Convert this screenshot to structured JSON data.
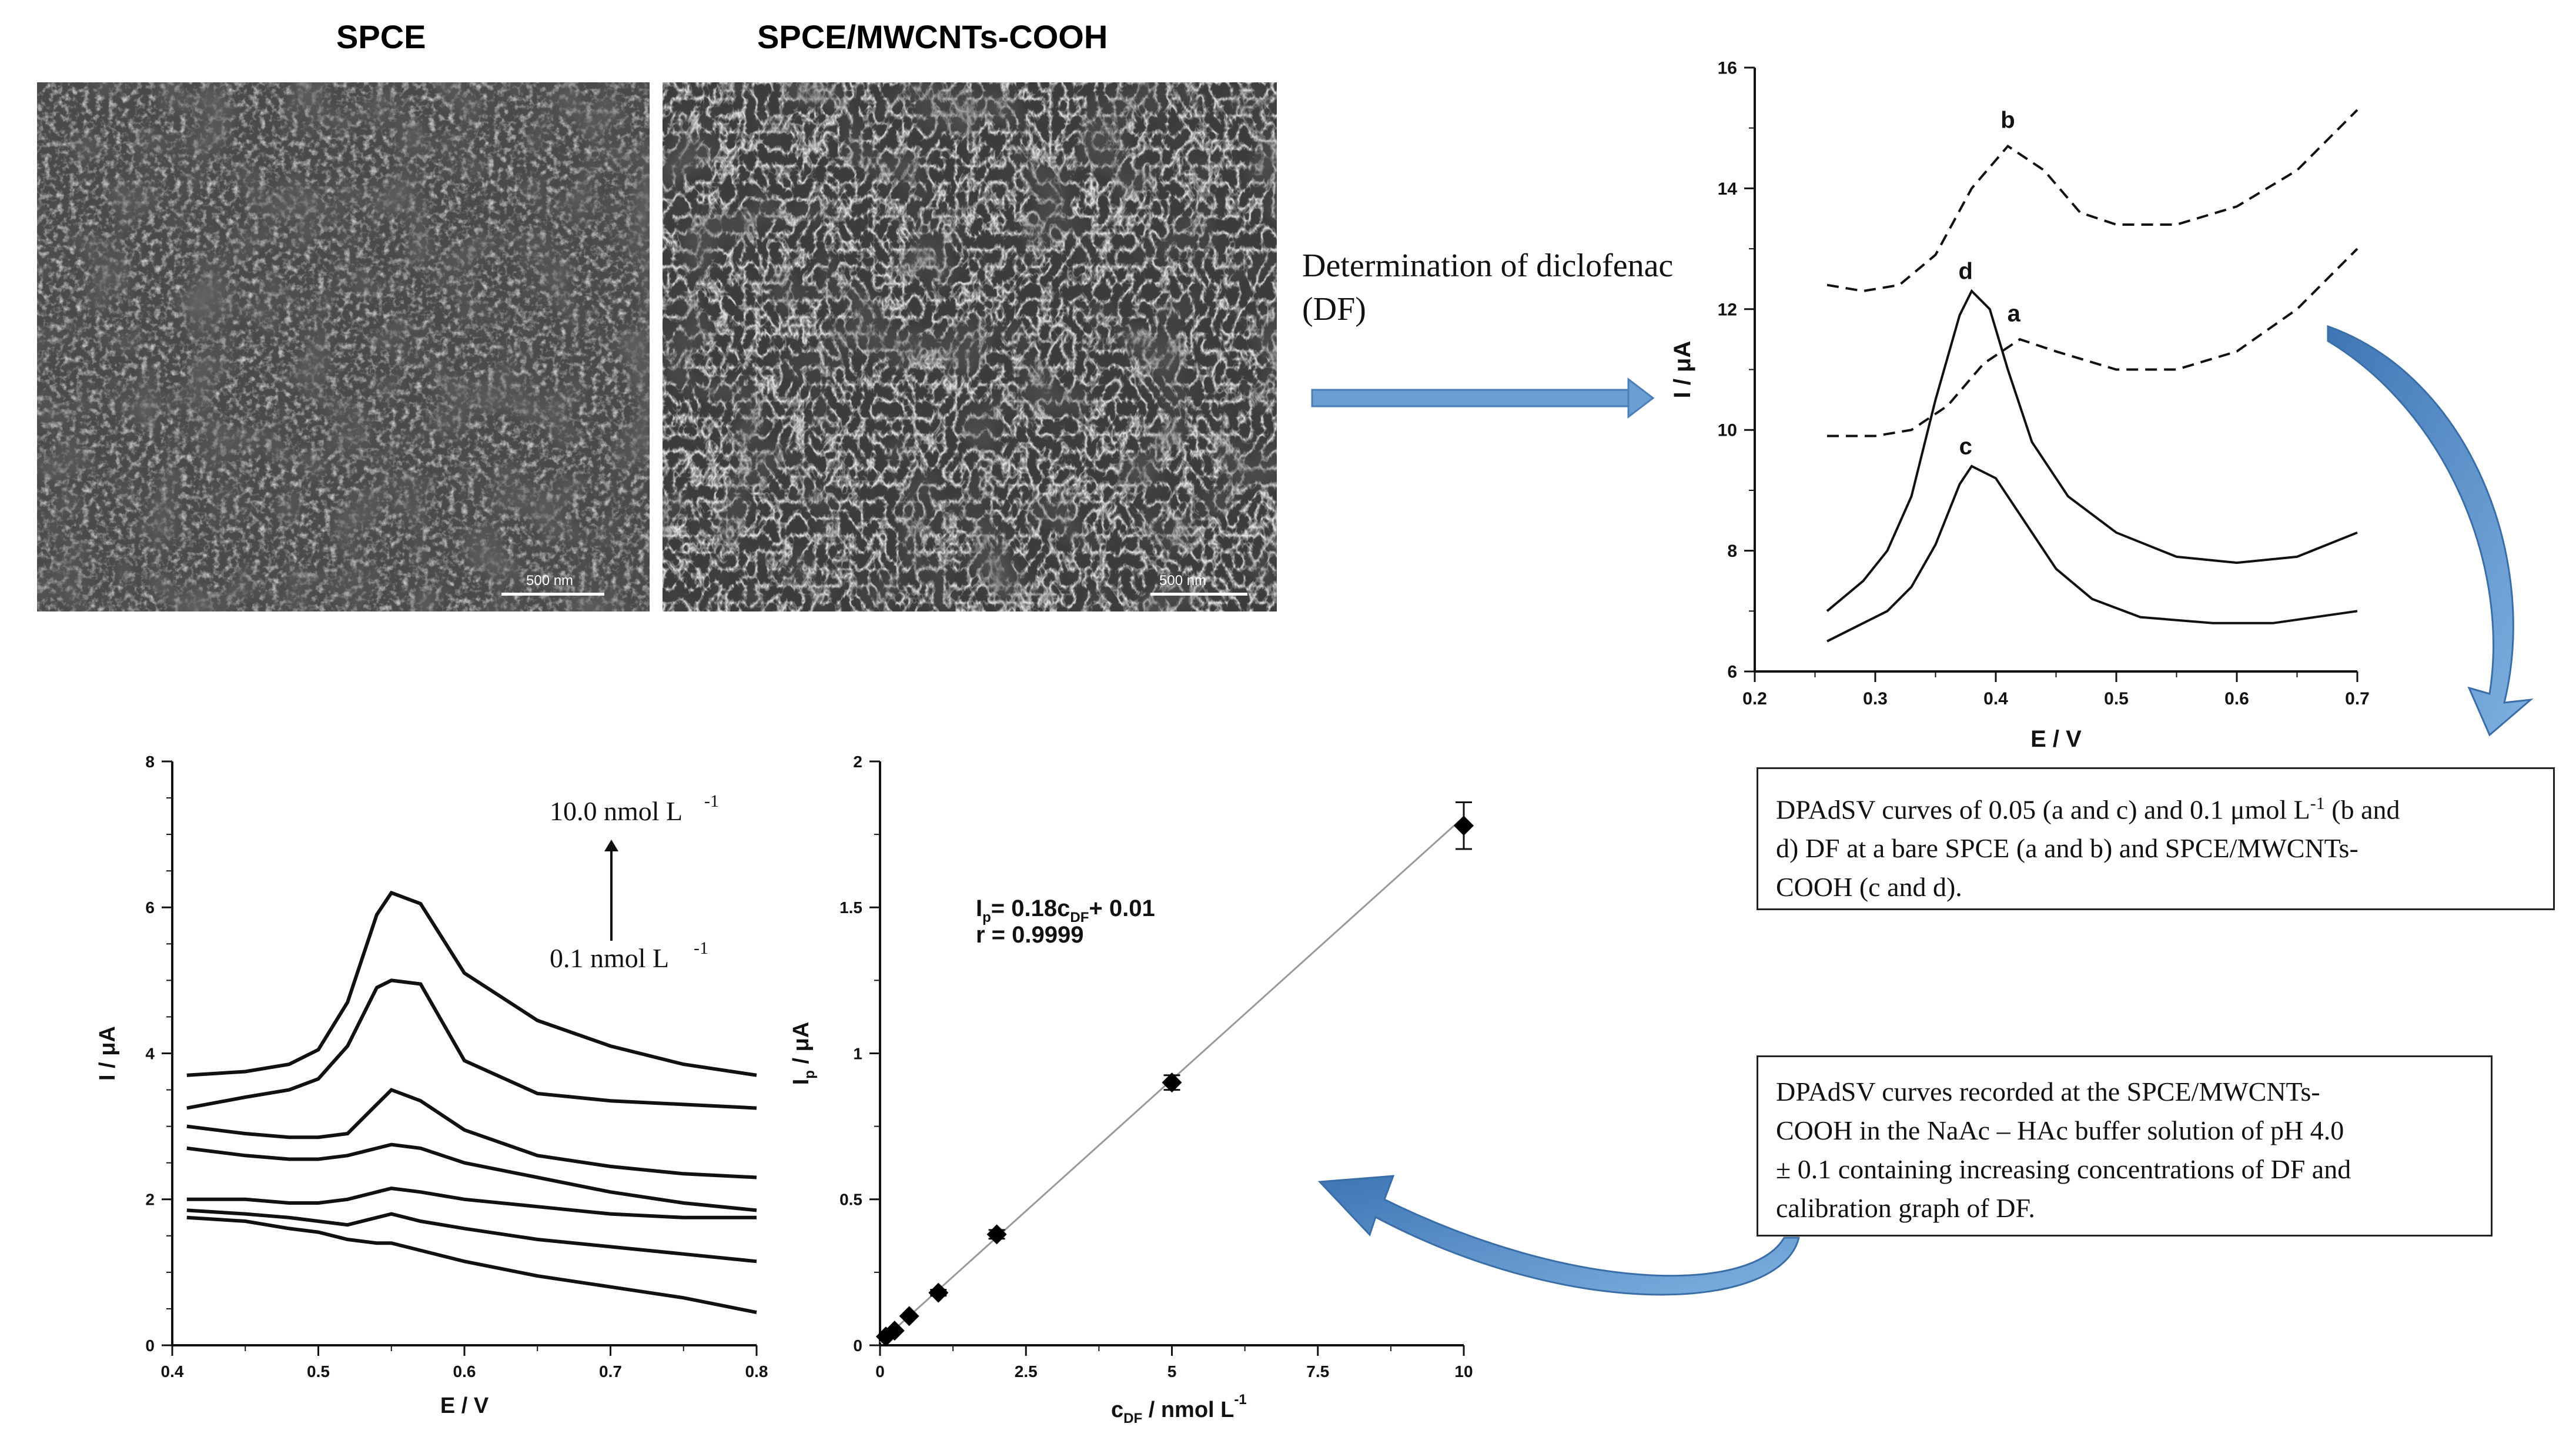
{
  "sem_images": {
    "left": {
      "title": "SPCE",
      "scale_label": "500 nm"
    },
    "right": {
      "title": "SPCE/MWCNTs-COOH",
      "scale_label": "500 nm"
    }
  },
  "flow": {
    "determination_label_line1": "Determination of diclofenac",
    "determination_label_line2": "(DF)"
  },
  "captions": {
    "top_line1": "DPAdSV curves of  0.05 (a and c) and 0.1 μmol  L",
    "top_sup": "-1",
    "top_line1_end": " (b and",
    "top_line2": "d) DF  at a bare SPCE (a and b) and SPCE/MWCNTs-",
    "top_line3": "COOH (c and d).",
    "bottom_line1": "DPAdSV curves recorded at the SPCE/MWCNTs-",
    "bottom_line2": "COOH in the NaAc – HAc buffer solution of pH 4.0",
    "bottom_line3": "± 0.1 containing increasing concentrations of DF and",
    "bottom_line4": "calibration graph of DF."
  },
  "chart_data": [
    {
      "id": "voltammogram-top",
      "type": "line",
      "xlabel": "E / V",
      "ylabel": "I / μA",
      "xlim": [
        0.2,
        0.7
      ],
      "ylim": [
        6,
        16
      ],
      "xticks": [
        "0.2",
        "0.3",
        "0.4",
        "0.5",
        "0.6",
        "0.7"
      ],
      "yticks": [
        "6",
        "8",
        "10",
        "12",
        "14",
        "16"
      ],
      "series": [
        {
          "name": "a",
          "style": "dashed",
          "x": [
            0.26,
            0.3,
            0.33,
            0.36,
            0.39,
            0.42,
            0.45,
            0.5,
            0.55,
            0.6,
            0.65,
            0.7
          ],
          "y": [
            9.9,
            9.9,
            10.0,
            10.4,
            11.1,
            11.5,
            11.3,
            11.0,
            11.0,
            11.3,
            12.0,
            13.0
          ]
        },
        {
          "name": "b",
          "style": "dashed",
          "x": [
            0.26,
            0.29,
            0.32,
            0.35,
            0.38,
            0.41,
            0.44,
            0.47,
            0.5,
            0.55,
            0.6,
            0.65,
            0.7
          ],
          "y": [
            12.4,
            12.3,
            12.4,
            12.9,
            14.0,
            14.7,
            14.3,
            13.6,
            13.4,
            13.4,
            13.7,
            14.3,
            15.3
          ]
        },
        {
          "name": "c",
          "style": "solid",
          "x": [
            0.26,
            0.29,
            0.31,
            0.33,
            0.35,
            0.37,
            0.38,
            0.4,
            0.42,
            0.45,
            0.48,
            0.52,
            0.58,
            0.63,
            0.7
          ],
          "y": [
            6.5,
            6.8,
            7.0,
            7.4,
            8.1,
            9.1,
            9.4,
            9.2,
            8.6,
            7.7,
            7.2,
            6.9,
            6.8,
            6.8,
            7.0
          ]
        },
        {
          "name": "d",
          "style": "solid",
          "x": [
            0.26,
            0.29,
            0.31,
            0.33,
            0.35,
            0.37,
            0.38,
            0.395,
            0.41,
            0.43,
            0.46,
            0.5,
            0.55,
            0.6,
            0.65,
            0.7
          ],
          "y": [
            7.0,
            7.5,
            8.0,
            8.9,
            10.5,
            11.9,
            12.3,
            12.0,
            11.0,
            9.8,
            8.9,
            8.3,
            7.9,
            7.8,
            7.9,
            8.3
          ]
        }
      ],
      "point_labels": [
        {
          "text": "b",
          "x": 0.41,
          "y": 15.0
        },
        {
          "text": "d",
          "x": 0.375,
          "y": 12.5
        },
        {
          "text": "a",
          "x": 0.415,
          "y": 11.8
        },
        {
          "text": "c",
          "x": 0.375,
          "y": 9.6
        }
      ]
    },
    {
      "id": "voltammogram-bottom",
      "type": "line",
      "xlabel": "E / V",
      "ylabel": "I / μA",
      "xlim": [
        0.4,
        0.8
      ],
      "ylim": [
        0,
        8
      ],
      "xticks": [
        "0.4",
        "0.5",
        "0.6",
        "0.7",
        "0.8"
      ],
      "yticks": [
        "0",
        "2",
        "4",
        "6",
        "8"
      ],
      "annotation_top": "10.0 nmol  L",
      "annotation_top_sup": "-1",
      "annotation_bottom": "0.1 nmol  L",
      "annotation_bottom_sup": "-1",
      "series": [
        {
          "x": [
            0.41,
            0.45,
            0.48,
            0.5,
            0.52,
            0.54,
            0.55,
            0.57,
            0.6,
            0.65,
            0.7,
            0.75,
            0.8
          ],
          "y": [
            1.75,
            1.7,
            1.6,
            1.55,
            1.45,
            1.4,
            1.4,
            1.3,
            1.15,
            0.95,
            0.8,
            0.65,
            0.45
          ]
        },
        {
          "x": [
            0.41,
            0.45,
            0.48,
            0.5,
            0.52,
            0.54,
            0.55,
            0.57,
            0.6,
            0.65,
            0.7,
            0.75,
            0.8
          ],
          "y": [
            1.85,
            1.8,
            1.75,
            1.7,
            1.65,
            1.75,
            1.8,
            1.7,
            1.6,
            1.45,
            1.35,
            1.25,
            1.15
          ]
        },
        {
          "x": [
            0.41,
            0.45,
            0.48,
            0.5,
            0.52,
            0.54,
            0.55,
            0.57,
            0.6,
            0.65,
            0.7,
            0.75,
            0.8
          ],
          "y": [
            2.0,
            2.0,
            1.95,
            1.95,
            2.0,
            2.1,
            2.15,
            2.1,
            2.0,
            1.9,
            1.8,
            1.75,
            1.75
          ]
        },
        {
          "x": [
            0.41,
            0.45,
            0.48,
            0.5,
            0.52,
            0.54,
            0.55,
            0.57,
            0.6,
            0.65,
            0.7,
            0.75,
            0.8
          ],
          "y": [
            2.7,
            2.6,
            2.55,
            2.55,
            2.6,
            2.7,
            2.75,
            2.7,
            2.5,
            2.3,
            2.1,
            1.95,
            1.85
          ]
        },
        {
          "x": [
            0.41,
            0.45,
            0.48,
            0.5,
            0.52,
            0.54,
            0.55,
            0.57,
            0.6,
            0.65,
            0.7,
            0.75,
            0.8
          ],
          "y": [
            3.0,
            2.9,
            2.85,
            2.85,
            2.9,
            3.3,
            3.5,
            3.35,
            2.95,
            2.6,
            2.45,
            2.35,
            2.3
          ]
        },
        {
          "x": [
            0.41,
            0.45,
            0.48,
            0.5,
            0.52,
            0.54,
            0.55,
            0.57,
            0.6,
            0.65,
            0.7,
            0.75,
            0.8
          ],
          "y": [
            3.25,
            3.4,
            3.5,
            3.65,
            4.1,
            4.9,
            5.0,
            4.95,
            3.9,
            3.45,
            3.35,
            3.3,
            3.25
          ]
        },
        {
          "x": [
            0.41,
            0.45,
            0.48,
            0.5,
            0.52,
            0.54,
            0.55,
            0.57,
            0.6,
            0.65,
            0.7,
            0.75,
            0.8
          ],
          "y": [
            3.7,
            3.75,
            3.85,
            4.05,
            4.7,
            5.9,
            6.2,
            6.05,
            5.1,
            4.45,
            4.1,
            3.85,
            3.7
          ]
        }
      ]
    },
    {
      "id": "calibration",
      "type": "scatter",
      "xlabel": "c",
      "xlabel_sub": "DF",
      "xlabel_unit": "  / nmol L",
      "xlabel_sup": "-1",
      "ylabel": "I",
      "ylabel_sub": "p",
      "ylabel_unit": " / μA",
      "xlim": [
        0,
        10
      ],
      "ylim": [
        0,
        2
      ],
      "xticks": [
        "0",
        "2.5",
        "5",
        "7.5",
        "10"
      ],
      "yticks": [
        "0",
        "0.5",
        "1",
        "1.5",
        "2"
      ],
      "equation_main": "I",
      "equation_sub1": "p",
      "equation_mid": "= 0.18c",
      "equation_sub2": "DF",
      "equation_end": "+ 0.01",
      "r_label": "r = 0.9999",
      "points": [
        {
          "x": 0.1,
          "y": 0.03,
          "err": 0
        },
        {
          "x": 0.25,
          "y": 0.05,
          "err": 0
        },
        {
          "x": 0.5,
          "y": 0.1,
          "err": 0
        },
        {
          "x": 1.0,
          "y": 0.18,
          "err": 0.01
        },
        {
          "x": 2.0,
          "y": 0.38,
          "err": 0.015
        },
        {
          "x": 5.0,
          "y": 0.9,
          "err": 0.025
        },
        {
          "x": 10.0,
          "y": 1.78,
          "err": 0.08
        }
      ],
      "fit": {
        "slope": 0.18,
        "intercept": 0.01
      }
    }
  ],
  "colors": {
    "arrow": "#5a8fc8",
    "curved_arrow": "#4a7fb8",
    "fit_line": "#9a9a9a"
  }
}
